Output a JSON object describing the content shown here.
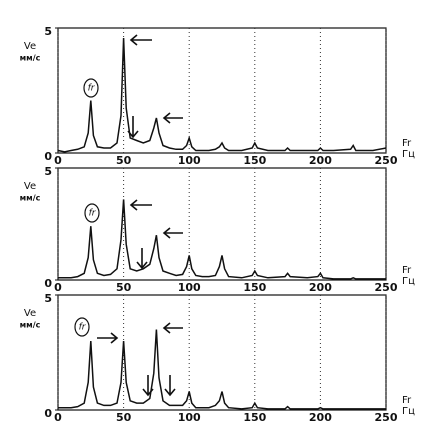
{
  "chart_data": [
    {
      "type": "line",
      "y_label": "Ve",
      "y_unit": "мм/с",
      "x_label": "Fr",
      "x_unit": "Гц",
      "annotation": "fr",
      "xlim": [
        0,
        250
      ],
      "ylim": [
        0,
        5
      ],
      "xticks": [
        0,
        50,
        100,
        150,
        200,
        250
      ],
      "yticks": [
        0,
        5
      ],
      "grid": true,
      "color": "#111111",
      "x": [
        0,
        5,
        10,
        15,
        20,
        23,
        25,
        27,
        30,
        35,
        40,
        45,
        48,
        50,
        52,
        55,
        60,
        65,
        70,
        73,
        75,
        77,
        80,
        85,
        90,
        95,
        98,
        100,
        102,
        105,
        110,
        115,
        120,
        123,
        125,
        127,
        130,
        140,
        148,
        150,
        152,
        160,
        173,
        175,
        177,
        190,
        198,
        200,
        202,
        210,
        223,
        225,
        227,
        240,
        250
      ],
      "values": [
        0.1,
        0.05,
        0.1,
        0.15,
        0.25,
        0.8,
        2.1,
        0.7,
        0.25,
        0.2,
        0.2,
        0.4,
        1.5,
        4.6,
        1.8,
        0.6,
        0.5,
        0.4,
        0.5,
        1.0,
        1.4,
        0.8,
        0.3,
        0.2,
        0.15,
        0.15,
        0.3,
        0.6,
        0.25,
        0.1,
        0.1,
        0.1,
        0.15,
        0.25,
        0.4,
        0.2,
        0.1,
        0.1,
        0.2,
        0.4,
        0.2,
        0.1,
        0.1,
        0.2,
        0.1,
        0.1,
        0.1,
        0.2,
        0.1,
        0.1,
        0.15,
        0.3,
        0.1,
        0.1,
        0.2
      ]
    },
    {
      "type": "line",
      "y_label": "Ve",
      "y_unit": "мм/с",
      "x_label": "Fr",
      "x_unit": "Гц",
      "annotation": "fr",
      "xlim": [
        0,
        250
      ],
      "ylim": [
        0,
        5
      ],
      "xticks": [
        0,
        50,
        100,
        150,
        200,
        250
      ],
      "yticks": [
        0,
        5
      ],
      "grid": true,
      "color": "#111111",
      "x": [
        0,
        5,
        10,
        15,
        20,
        23,
        25,
        27,
        30,
        35,
        40,
        45,
        48,
        50,
        52,
        55,
        60,
        65,
        70,
        73,
        75,
        77,
        80,
        85,
        90,
        95,
        98,
        100,
        102,
        105,
        110,
        115,
        120,
        123,
        125,
        127,
        130,
        140,
        148,
        150,
        152,
        160,
        173,
        175,
        177,
        190,
        198,
        200,
        202,
        210,
        223,
        225,
        227,
        240,
        250
      ],
      "values": [
        0.1,
        0.1,
        0.1,
        0.15,
        0.3,
        1.0,
        2.4,
        0.9,
        0.3,
        0.2,
        0.25,
        0.5,
        1.8,
        3.6,
        1.6,
        0.5,
        0.4,
        0.5,
        0.7,
        1.4,
        2.0,
        1.0,
        0.4,
        0.3,
        0.2,
        0.25,
        0.6,
        1.1,
        0.5,
        0.2,
        0.15,
        0.15,
        0.2,
        0.6,
        1.1,
        0.5,
        0.15,
        0.1,
        0.2,
        0.4,
        0.2,
        0.1,
        0.15,
        0.3,
        0.15,
        0.1,
        0.15,
        0.3,
        0.1,
        0.05,
        0.05,
        0.1,
        0.05,
        0.05,
        0.05
      ]
    },
    {
      "type": "line",
      "y_label": "Ve",
      "y_unit": "мм/с",
      "x_label": "Fr",
      "x_unit": "Гц",
      "annotation": "fr",
      "xlim": [
        0,
        250
      ],
      "ylim": [
        0,
        5
      ],
      "xticks": [
        0,
        50,
        100,
        150,
        200,
        250
      ],
      "yticks": [
        0,
        5
      ],
      "grid": true,
      "color": "#111111",
      "x": [
        0,
        5,
        10,
        15,
        20,
        23,
        25,
        27,
        30,
        35,
        40,
        45,
        48,
        50,
        52,
        55,
        60,
        65,
        70,
        73,
        75,
        77,
        80,
        85,
        90,
        95,
        98,
        100,
        102,
        105,
        110,
        115,
        120,
        123,
        125,
        127,
        130,
        140,
        148,
        150,
        152,
        160,
        173,
        175,
        177,
        190,
        198,
        200,
        202,
        210,
        223,
        225,
        227,
        240,
        250
      ],
      "values": [
        0.1,
        0.1,
        0.1,
        0.15,
        0.3,
        1.2,
        3.0,
        1.0,
        0.3,
        0.2,
        0.2,
        0.3,
        1.2,
        3.0,
        1.2,
        0.4,
        0.3,
        0.3,
        0.5,
        1.6,
        3.5,
        1.4,
        0.4,
        0.2,
        0.2,
        0.2,
        0.4,
        0.8,
        0.3,
        0.1,
        0.1,
        0.1,
        0.2,
        0.4,
        0.8,
        0.3,
        0.1,
        0.05,
        0.1,
        0.3,
        0.1,
        0.05,
        0.05,
        0.15,
        0.05,
        0.05,
        0.05,
        0.1,
        0.05,
        0.05,
        0.05,
        0.05,
        0.05,
        0.05,
        0.05
      ]
    }
  ]
}
